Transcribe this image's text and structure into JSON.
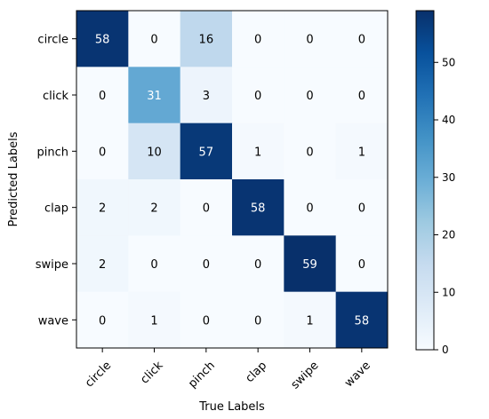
{
  "chart_data": {
    "type": "heatmap",
    "title": "",
    "xlabel": "True Labels",
    "ylabel": "Predicted Labels",
    "x_categories": [
      "circle",
      "click",
      "pinch",
      "clap",
      "swipe",
      "wave"
    ],
    "y_categories": [
      "circle",
      "click",
      "pinch",
      "clap",
      "swipe",
      "wave"
    ],
    "matrix": [
      [
        58,
        0,
        16,
        0,
        0,
        0
      ],
      [
        0,
        31,
        3,
        0,
        0,
        0
      ],
      [
        0,
        10,
        57,
        1,
        0,
        1
      ],
      [
        2,
        2,
        0,
        58,
        0,
        0
      ],
      [
        2,
        0,
        0,
        0,
        59,
        0
      ],
      [
        0,
        1,
        0,
        0,
        1,
        58
      ]
    ],
    "colormap": "Blues",
    "colorbar": {
      "min": 0,
      "max": 59,
      "ticks": [
        0,
        10,
        20,
        30,
        40,
        50
      ]
    },
    "text_colors": {
      "dark_cell": "#ffffff",
      "light_cell": "#000000"
    },
    "grid": false
  }
}
